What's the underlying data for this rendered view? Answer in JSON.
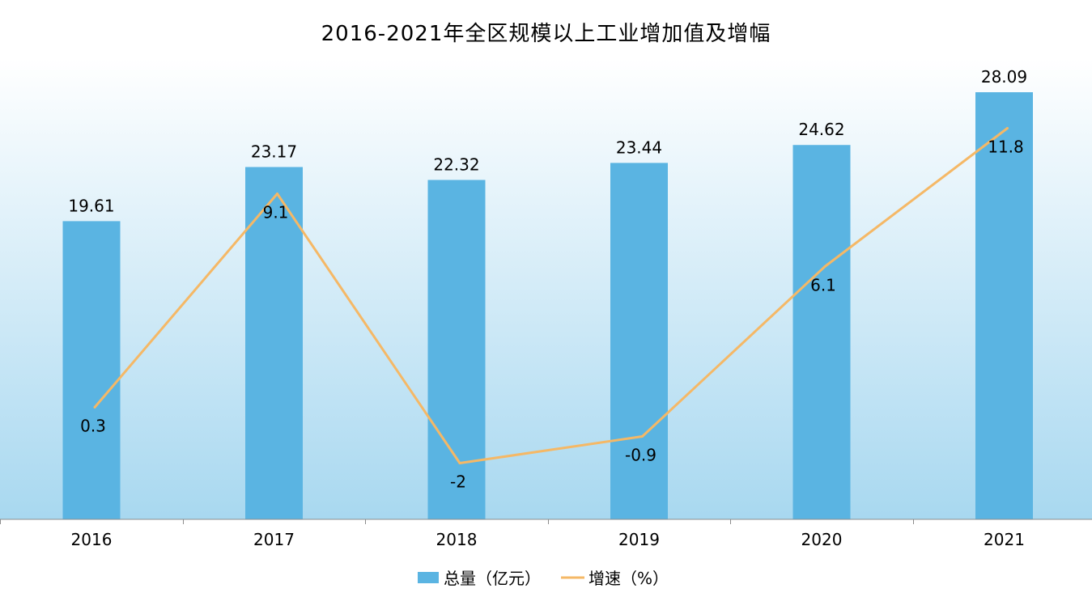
{
  "chart_data": {
    "type": "bar",
    "title": "2016-2021年全区规模以上工业增加值及增幅",
    "categories": [
      "2016",
      "2017",
      "2018",
      "2019",
      "2020",
      "2021"
    ],
    "series": [
      {
        "name": "总量（亿元）",
        "type": "bar",
        "axis": "left",
        "values": [
          19.61,
          23.17,
          22.32,
          23.44,
          24.62,
          28.09
        ],
        "color": "#5ab4e2"
      },
      {
        "name": "增速（%）",
        "type": "line",
        "axis": "right",
        "values": [
          0.3,
          9.1,
          -2,
          -0.9,
          6.1,
          11.8
        ],
        "color": "#f5b866"
      }
    ],
    "legend_position": "bottom-center",
    "grid": false,
    "background_gradient": [
      "#ffffff",
      "#a8d8f0"
    ]
  }
}
